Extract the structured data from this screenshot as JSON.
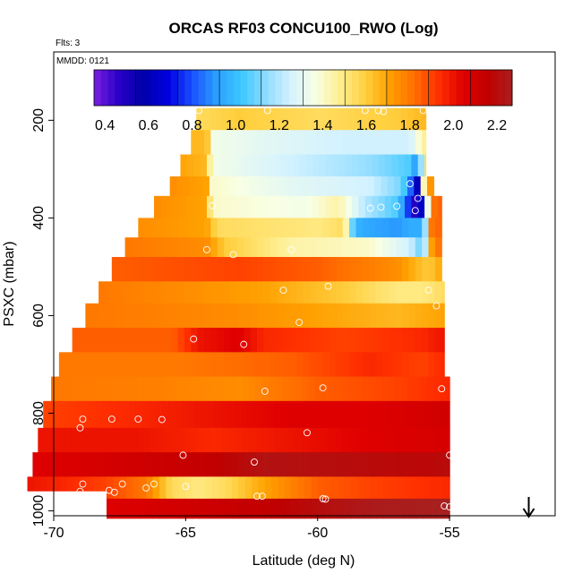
{
  "chart_data": {
    "type": "heatmap",
    "title": "ORCAS RF03 CONCU100_RWO (Log)",
    "flights_note": "Flts: 3",
    "date_note": "MMDD: 0121",
    "xlabel": "Latitude (deg N)",
    "ylabel": "PSXC (mbar)",
    "xlim": [
      -70,
      -51
    ],
    "ylim": [
      1010,
      60
    ],
    "y_reversed": true,
    "xticks": [
      -70,
      -65,
      -60,
      -55
    ],
    "yticks": [
      200,
      400,
      600,
      800,
      1000
    ],
    "colorbar": {
      "range": [
        0.35,
        2.27
      ],
      "ticks": [
        0.4,
        0.6,
        0.8,
        1.0,
        1.2,
        1.4,
        1.6,
        1.8,
        2.0,
        2.2
      ],
      "tick_labels": [
        "0.4",
        "0.6",
        "0.8",
        "1.0",
        "1.2",
        "1.4",
        "1.6",
        "1.8",
        "2.0",
        "2.2"
      ],
      "colors": [
        "#7a1fe0",
        "#2a00c8",
        "#0000a8",
        "#0000e0",
        "#1a50ff",
        "#2ca0ff",
        "#3cc8ff",
        "#8fdcff",
        "#d4f2ff",
        "#f8ffe4",
        "#ffee90",
        "#ffd040",
        "#ffa000",
        "#ff7000",
        "#ff3000",
        "#e00000",
        "#c00000",
        "#a82020"
      ]
    },
    "bands": [
      {
        "p_top": 175,
        "p_bot": 220,
        "x_start": -64.6,
        "x_end": -55.9,
        "values": [
          [
            -64.6,
            1.55
          ],
          [
            -63,
            1.6
          ],
          [
            -60,
            1.55
          ],
          [
            -57,
            1.6
          ],
          [
            -55.9,
            1.65
          ]
        ]
      },
      {
        "p_top": 220,
        "p_bot": 270,
        "x_start": -64.8,
        "x_end": -55.9,
        "values": [
          [
            -64.8,
            1.65
          ],
          [
            -64.2,
            1.65
          ],
          [
            -64.0,
            1.35
          ],
          [
            -62,
            1.3
          ],
          [
            -59,
            1.25
          ],
          [
            -56.5,
            1.25
          ],
          [
            -55.9,
            1.5
          ]
        ]
      },
      {
        "p_top": 270,
        "p_bot": 315,
        "x_start": -65.2,
        "x_end": -55.9,
        "values": [
          [
            -65.2,
            1.7
          ],
          [
            -64.2,
            1.65
          ],
          [
            -64.0,
            1.35
          ],
          [
            -61,
            1.25
          ],
          [
            -58,
            1.15
          ],
          [
            -56.5,
            1.05
          ],
          [
            -56.2,
            0.85
          ],
          [
            -55.9,
            1.6
          ]
        ]
      },
      {
        "p_top": 315,
        "p_bot": 355,
        "x_start": -65.6,
        "x_end": -55.6,
        "values": [
          [
            -65.6,
            1.75
          ],
          [
            -64.2,
            1.7
          ],
          [
            -64.0,
            1.4
          ],
          [
            -61,
            1.3
          ],
          [
            -58,
            1.25
          ],
          [
            -56.8,
            1.1
          ],
          [
            -56.5,
            0.85
          ],
          [
            -56.2,
            0.6
          ],
          [
            -55.9,
            1.7
          ],
          [
            -55.6,
            1.75
          ]
        ]
      },
      {
        "p_top": 355,
        "p_bot": 400,
        "x_start": -66.2,
        "x_end": -55.3,
        "values": [
          [
            -66.2,
            1.75
          ],
          [
            -64.2,
            1.7
          ],
          [
            -64.0,
            1.4
          ],
          [
            -60.5,
            1.35
          ],
          [
            -59.2,
            1.45
          ],
          [
            -58.2,
            1.2
          ],
          [
            -57,
            1.05
          ],
          [
            -56.6,
            0.8
          ],
          [
            -56.3,
            0.45
          ],
          [
            -56.0,
            0.7
          ],
          [
            -55.7,
            1.8
          ],
          [
            -55.3,
            1.85
          ]
        ]
      },
      {
        "p_top": 400,
        "p_bot": 440,
        "x_start": -66.8,
        "x_end": -55.3,
        "values": [
          [
            -66.8,
            1.75
          ],
          [
            -64.2,
            1.7
          ],
          [
            -63.8,
            1.55
          ],
          [
            -60,
            1.5
          ],
          [
            -59.0,
            1.55
          ],
          [
            -58.7,
            1.1
          ],
          [
            -58.4,
            0.95
          ],
          [
            -57,
            0.9
          ],
          [
            -56.5,
            0.95
          ],
          [
            -56.0,
            0.95
          ],
          [
            -55.7,
            1.8
          ],
          [
            -55.3,
            1.85
          ]
        ]
      },
      {
        "p_top": 440,
        "p_bot": 480,
        "x_start": -67.3,
        "x_end": -55.3,
        "values": [
          [
            -67.3,
            1.8
          ],
          [
            -64.2,
            1.75
          ],
          [
            -63.5,
            1.6
          ],
          [
            -61,
            1.45
          ],
          [
            -58,
            1.4
          ],
          [
            -56.5,
            1.25
          ],
          [
            -56.0,
            1.05
          ],
          [
            -55.7,
            1.7
          ],
          [
            -55.3,
            1.85
          ]
        ]
      },
      {
        "p_top": 480,
        "p_bot": 530,
        "x_start": -67.8,
        "x_end": -55.3,
        "values": [
          [
            -67.8,
            1.85
          ],
          [
            -63,
            1.9
          ],
          [
            -60,
            1.85
          ],
          [
            -57,
            1.75
          ],
          [
            -55.8,
            1.6
          ],
          [
            -55.3,
            1.7
          ]
        ]
      },
      {
        "p_top": 530,
        "p_bot": 575,
        "x_start": -68.3,
        "x_end": -55.2,
        "values": [
          [
            -68.3,
            1.8
          ],
          [
            -65,
            1.75
          ],
          [
            -62,
            1.7
          ],
          [
            -59,
            1.6
          ],
          [
            -57,
            1.5
          ],
          [
            -56,
            1.5
          ],
          [
            -55.2,
            1.55
          ]
        ]
      },
      {
        "p_top": 575,
        "p_bot": 625,
        "x_start": -68.8,
        "x_end": -55.2,
        "values": [
          [
            -68.8,
            1.8
          ],
          [
            -66,
            1.78
          ],
          [
            -63,
            1.75
          ],
          [
            -60,
            1.7
          ],
          [
            -57,
            1.65
          ],
          [
            -55.2,
            1.7
          ]
        ]
      },
      {
        "p_top": 625,
        "p_bot": 675,
        "x_start": -69.3,
        "x_end": -55.2,
        "values": [
          [
            -69.3,
            1.85
          ],
          [
            -65.5,
            1.85
          ],
          [
            -64.5,
            2.0
          ],
          [
            -63,
            2.05
          ],
          [
            -62,
            1.95
          ],
          [
            -59,
            1.9
          ],
          [
            -56,
            1.95
          ],
          [
            -55.2,
            2.0
          ]
        ]
      },
      {
        "p_top": 675,
        "p_bot": 725,
        "x_start": -69.8,
        "x_end": -55.2,
        "values": [
          [
            -69.8,
            1.8
          ],
          [
            -65,
            1.8
          ],
          [
            -61,
            1.85
          ],
          [
            -58,
            1.95
          ],
          [
            -56,
            1.9
          ],
          [
            -55.2,
            1.95
          ]
        ]
      },
      {
        "p_top": 725,
        "p_bot": 775,
        "x_start": -70.1,
        "x_end": -55.0,
        "values": [
          [
            -70.1,
            1.8
          ],
          [
            -66,
            1.78
          ],
          [
            -63,
            1.75
          ],
          [
            -60,
            1.85
          ],
          [
            -57,
            1.9
          ],
          [
            -55.0,
            1.95
          ]
        ]
      },
      {
        "p_top": 775,
        "p_bot": 830,
        "x_start": -70.4,
        "x_end": -55.0,
        "values": [
          [
            -70.4,
            1.9
          ],
          [
            -67,
            1.95
          ],
          [
            -64,
            2.0
          ],
          [
            -61,
            2.05
          ],
          [
            -58,
            2.05
          ],
          [
            -55.0,
            2.1
          ]
        ]
      },
      {
        "p_top": 830,
        "p_bot": 880,
        "x_start": -70.6,
        "x_end": -55.0,
        "values": [
          [
            -70.6,
            2.0
          ],
          [
            -67,
            2.0
          ],
          [
            -64,
            1.95
          ],
          [
            -61,
            2.0
          ],
          [
            -58,
            2.05
          ],
          [
            -55.0,
            2.08
          ]
        ]
      },
      {
        "p_top": 880,
        "p_bot": 930,
        "x_start": -70.8,
        "x_end": -55.0,
        "values": [
          [
            -70.8,
            2.05
          ],
          [
            -67,
            2.1
          ],
          [
            -64,
            2.15
          ],
          [
            -62,
            2.22
          ],
          [
            -59,
            2.2
          ],
          [
            -56,
            2.18
          ],
          [
            -55.0,
            2.2
          ]
        ]
      },
      {
        "p_top": 930,
        "p_bot": 975,
        "x_start": -71.0,
        "x_end": -55.0,
        "values": [
          [
            -71.0,
            2.0
          ],
          [
            -68,
            1.9
          ],
          [
            -66.5,
            1.8
          ],
          [
            -65.5,
            1.55
          ],
          [
            -64.5,
            1.5
          ],
          [
            -63.5,
            1.55
          ],
          [
            -62,
            1.7
          ],
          [
            -60,
            1.85
          ],
          [
            -58,
            1.9
          ],
          [
            -55.0,
            1.95
          ]
        ]
      },
      {
        "p_top": 975,
        "p_bot": 1015,
        "x_start": -68.0,
        "x_end": -55.0,
        "values": [
          [
            -68.0,
            2.05
          ],
          [
            -65,
            2.1
          ],
          [
            -62,
            2.15
          ],
          [
            -60,
            2.2
          ],
          [
            -58,
            2.25
          ],
          [
            -55.0,
            2.27
          ]
        ]
      }
    ],
    "blank_cells": [
      {
        "p_top": 960,
        "p_bot": 1015,
        "x_start": -71.0,
        "x_end": -68.0
      }
    ],
    "markers": [
      [
        -64.5,
        180
      ],
      [
        -61.9,
        180
      ],
      [
        -58.2,
        180
      ],
      [
        -57.7,
        180
      ],
      [
        -57.5,
        182
      ],
      [
        -56.0,
        180
      ],
      [
        -64.0,
        375
      ],
      [
        -58.0,
        380
      ],
      [
        -57.6,
        378
      ],
      [
        -57.0,
        376
      ],
      [
        -56.5,
        330
      ],
      [
        -56.3,
        385
      ],
      [
        -56.2,
        360
      ],
      [
        -64.2,
        465
      ],
      [
        -63.2,
        475
      ],
      [
        -61.0,
        465
      ],
      [
        -61.3,
        548
      ],
      [
        -59.6,
        540
      ],
      [
        -55.8,
        548
      ],
      [
        -55.5,
        580
      ],
      [
        -60.7,
        614
      ],
      [
        -64.7,
        648
      ],
      [
        -62.8,
        659
      ],
      [
        -62.0,
        755
      ],
      [
        -59.8,
        748
      ],
      [
        -55.3,
        750
      ],
      [
        -68.9,
        812
      ],
      [
        -67.8,
        812
      ],
      [
        -66.8,
        812
      ],
      [
        -65.9,
        813
      ],
      [
        -69.0,
        830
      ],
      [
        -60.4,
        840
      ],
      [
        -65.1,
        886
      ],
      [
        -62.4,
        900
      ],
      [
        -55.0,
        886
      ],
      [
        -68.9,
        945
      ],
      [
        -69.0,
        960
      ],
      [
        -67.9,
        958
      ],
      [
        -67.7,
        962
      ],
      [
        -67.4,
        945
      ],
      [
        -66.5,
        953
      ],
      [
        -66.2,
        945
      ],
      [
        -65.0,
        950
      ],
      [
        -62.3,
        970
      ],
      [
        -62.1,
        970
      ],
      [
        -59.8,
        975
      ],
      [
        -59.7,
        976
      ],
      [
        -55.2,
        990
      ],
      [
        -55.0,
        992
      ]
    ],
    "arrow_x": -52.0
  }
}
